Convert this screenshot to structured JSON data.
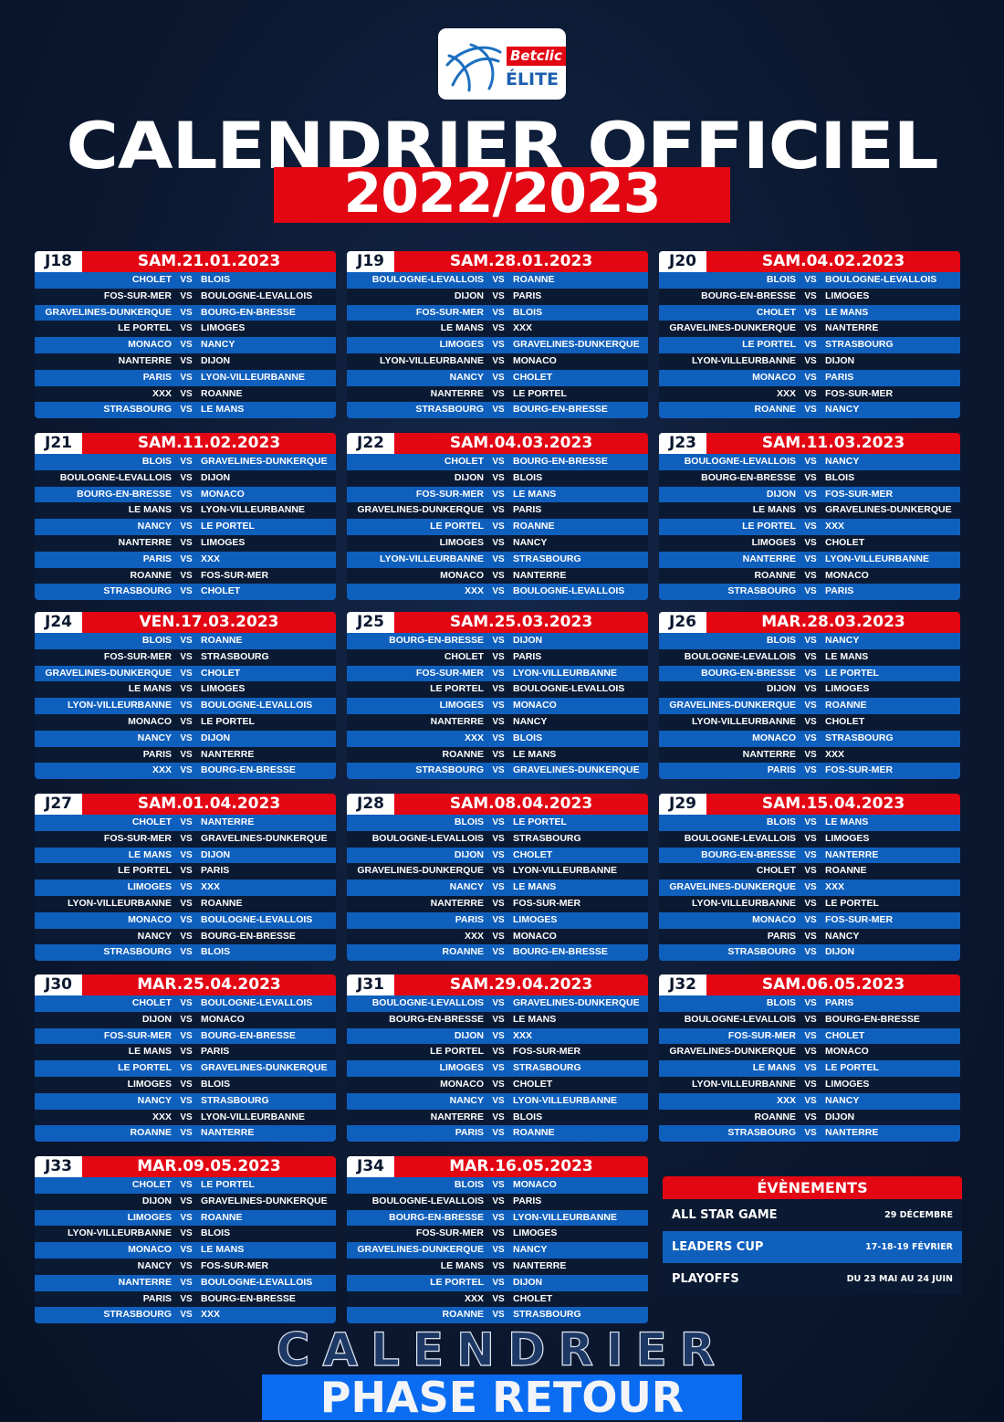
{
  "logo": {
    "brand": "Betclic",
    "league": "ÉLITE"
  },
  "title": "CALENDRIER OFFICIEL",
  "season": "2022/2023",
  "vs_label": "VS",
  "colors": {
    "red": "#e30613",
    "blue": "#0f5fbd",
    "navy": "#0b1a33",
    "phase_blue": "#0a6cf0"
  },
  "rounds": [
    {
      "day": "J18",
      "date": "SAM.21.01.2023",
      "matches": [
        [
          "CHOLET",
          "BLOIS"
        ],
        [
          "FOS-SUR-MER",
          "BOULOGNE-LEVALLOIS"
        ],
        [
          "GRAVELINES-DUNKERQUE",
          "BOURG-EN-BRESSE"
        ],
        [
          "LE PORTEL",
          "LIMOGES"
        ],
        [
          "MONACO",
          "NANCY"
        ],
        [
          "NANTERRE",
          "DIJON"
        ],
        [
          "PARIS",
          "LYON-VILLEURBANNE"
        ],
        [
          "XXX",
          "ROANNE"
        ],
        [
          "STRASBOURG",
          "LE MANS"
        ]
      ]
    },
    {
      "day": "J19",
      "date": "SAM.28.01.2023",
      "matches": [
        [
          "BOULOGNE-LEVALLOIS",
          "ROANNE"
        ],
        [
          "DIJON",
          "PARIS"
        ],
        [
          "FOS-SUR-MER",
          "BLOIS"
        ],
        [
          "LE MANS",
          "XXX"
        ],
        [
          "LIMOGES",
          "GRAVELINES-DUNKERQUE"
        ],
        [
          "LYON-VILLEURBANNE",
          "MONACO"
        ],
        [
          "NANCY",
          "CHOLET"
        ],
        [
          "NANTERRE",
          "LE PORTEL"
        ],
        [
          "STRASBOURG",
          "BOURG-EN-BRESSE"
        ]
      ]
    },
    {
      "day": "J20",
      "date": "SAM.04.02.2023",
      "matches": [
        [
          "BLOIS",
          "BOULOGNE-LEVALLOIS"
        ],
        [
          "BOURG-EN-BRESSE",
          "LIMOGES"
        ],
        [
          "CHOLET",
          "LE MANS"
        ],
        [
          "GRAVELINES-DUNKERQUE",
          "NANTERRE"
        ],
        [
          "LE PORTEL",
          "STRASBOURG"
        ],
        [
          "LYON-VILLEURBANNE",
          "DIJON"
        ],
        [
          "MONACO",
          "PARIS"
        ],
        [
          "XXX",
          "FOS-SUR-MER"
        ],
        [
          "ROANNE",
          "NANCY"
        ]
      ]
    },
    {
      "day": "J21",
      "date": "SAM.11.02.2023",
      "matches": [
        [
          "BLOIS",
          "GRAVELINES-DUNKERQUE"
        ],
        [
          "BOULOGNE-LEVALLOIS",
          "DIJON"
        ],
        [
          "BOURG-EN-BRESSE",
          "MONACO"
        ],
        [
          "LE MANS",
          "LYON-VILLEURBANNE"
        ],
        [
          "NANCY",
          "LE PORTEL"
        ],
        [
          "NANTERRE",
          "LIMOGES"
        ],
        [
          "PARIS",
          "XXX"
        ],
        [
          "ROANNE",
          "FOS-SUR-MER"
        ],
        [
          "STRASBOURG",
          "CHOLET"
        ]
      ]
    },
    {
      "day": "J22",
      "date": "SAM.04.03.2023",
      "matches": [
        [
          "CHOLET",
          "BOURG-EN-BRESSE"
        ],
        [
          "DIJON",
          "BLOIS"
        ],
        [
          "FOS-SUR-MER",
          "LE MANS"
        ],
        [
          "GRAVELINES-DUNKERQUE",
          "PARIS"
        ],
        [
          "LE PORTEL",
          "ROANNE"
        ],
        [
          "LIMOGES",
          "NANCY"
        ],
        [
          "LYON-VILLEURBANNE",
          "STRASBOURG"
        ],
        [
          "MONACO",
          "NANTERRE"
        ],
        [
          "XXX",
          "BOULOGNE-LEVALLOIS"
        ]
      ]
    },
    {
      "day": "J23",
      "date": "SAM.11.03.2023",
      "matches": [
        [
          "BOULOGNE-LEVALLOIS",
          "NANCY"
        ],
        [
          "BOURG-EN-BRESSE",
          "BLOIS"
        ],
        [
          "DIJON",
          "FOS-SUR-MER"
        ],
        [
          "LE MANS",
          "GRAVELINES-DUNKERQUE"
        ],
        [
          "LE PORTEL",
          "XXX"
        ],
        [
          "LIMOGES",
          "CHOLET"
        ],
        [
          "NANTERRE",
          "LYON-VILLEURBANNE"
        ],
        [
          "ROANNE",
          "MONACO"
        ],
        [
          "STRASBOURG",
          "PARIS"
        ]
      ]
    },
    {
      "day": "J24",
      "date": "VEN.17.03.2023",
      "matches": [
        [
          "BLOIS",
          "ROANNE"
        ],
        [
          "FOS-SUR-MER",
          "STRASBOURG"
        ],
        [
          "GRAVELINES-DUNKERQUE",
          "CHOLET"
        ],
        [
          "LE MANS",
          "LIMOGES"
        ],
        [
          "LYON-VILLEURBANNE",
          "BOULOGNE-LEVALLOIS"
        ],
        [
          "MONACO",
          "LE PORTEL"
        ],
        [
          "NANCY",
          "DIJON"
        ],
        [
          "PARIS",
          "NANTERRE"
        ],
        [
          "XXX",
          "BOURG-EN-BRESSE"
        ]
      ]
    },
    {
      "day": "J25",
      "date": "SAM.25.03.2023",
      "matches": [
        [
          "BOURG-EN-BRESSE",
          "DIJON"
        ],
        [
          "CHOLET",
          "PARIS"
        ],
        [
          "FOS-SUR-MER",
          "LYON-VILLEURBANNE"
        ],
        [
          "LE PORTEL",
          "BOULOGNE-LEVALLOIS"
        ],
        [
          "LIMOGES",
          "MONACO"
        ],
        [
          "NANTERRE",
          "NANCY"
        ],
        [
          "XXX",
          "BLOIS"
        ],
        [
          "ROANNE",
          "LE MANS"
        ],
        [
          "STRASBOURG",
          "GRAVELINES-DUNKERQUE"
        ]
      ]
    },
    {
      "day": "J26",
      "date": "MAR.28.03.2023",
      "matches": [
        [
          "BLOIS",
          "NANCY"
        ],
        [
          "BOULOGNE-LEVALLOIS",
          "LE MANS"
        ],
        [
          "BOURG-EN-BRESSE",
          "LE PORTEL"
        ],
        [
          "DIJON",
          "LIMOGES"
        ],
        [
          "GRAVELINES-DUNKERQUE",
          "ROANNE"
        ],
        [
          "LYON-VILLEURBANNE",
          "CHOLET"
        ],
        [
          "MONACO",
          "STRASBOURG"
        ],
        [
          "NANTERRE",
          "XXX"
        ],
        [
          "PARIS",
          "FOS-SUR-MER"
        ]
      ]
    },
    {
      "day": "J27",
      "date": "SAM.01.04.2023",
      "matches": [
        [
          "CHOLET",
          "NANTERRE"
        ],
        [
          "FOS-SUR-MER",
          "GRAVELINES-DUNKERQUE"
        ],
        [
          "LE MANS",
          "DIJON"
        ],
        [
          "LE PORTEL",
          "PARIS"
        ],
        [
          "LIMOGES",
          "XXX"
        ],
        [
          "LYON-VILLEURBANNE",
          "ROANNE"
        ],
        [
          "MONACO",
          "BOULOGNE-LEVALLOIS"
        ],
        [
          "NANCY",
          "BOURG-EN-BRESSE"
        ],
        [
          "STRASBOURG",
          "BLOIS"
        ]
      ]
    },
    {
      "day": "J28",
      "date": "SAM.08.04.2023",
      "matches": [
        [
          "BLOIS",
          "LE PORTEL"
        ],
        [
          "BOULOGNE-LEVALLOIS",
          "STRASBOURG"
        ],
        [
          "DIJON",
          "CHOLET"
        ],
        [
          "GRAVELINES-DUNKERQUE",
          "LYON-VILLEURBANNE"
        ],
        [
          "NANCY",
          "LE MANS"
        ],
        [
          "NANTERRE",
          "FOS-SUR-MER"
        ],
        [
          "PARIS",
          "LIMOGES"
        ],
        [
          "XXX",
          "MONACO"
        ],
        [
          "ROANNE",
          "BOURG-EN-BRESSE"
        ]
      ]
    },
    {
      "day": "J29",
      "date": "SAM.15.04.2023",
      "matches": [
        [
          "BLOIS",
          "LE MANS"
        ],
        [
          "BOULOGNE-LEVALLOIS",
          "LIMOGES"
        ],
        [
          "BOURG-EN-BRESSE",
          "NANTERRE"
        ],
        [
          "CHOLET",
          "ROANNE"
        ],
        [
          "GRAVELINES-DUNKERQUE",
          "XXX"
        ],
        [
          "LYON-VILLEURBANNE",
          "LE PORTEL"
        ],
        [
          "MONACO",
          "FOS-SUR-MER"
        ],
        [
          "PARIS",
          "NANCY"
        ],
        [
          "STRASBOURG",
          "DIJON"
        ]
      ]
    },
    {
      "day": "J30",
      "date": "MAR.25.04.2023",
      "matches": [
        [
          "CHOLET",
          "BOULOGNE-LEVALLOIS"
        ],
        [
          "DIJON",
          "MONACO"
        ],
        [
          "FOS-SUR-MER",
          "BOURG-EN-BRESSE"
        ],
        [
          "LE MANS",
          "PARIS"
        ],
        [
          "LE PORTEL",
          "GRAVELINES-DUNKERQUE"
        ],
        [
          "LIMOGES",
          "BLOIS"
        ],
        [
          "NANCY",
          "STRASBOURG"
        ],
        [
          "XXX",
          "LYON-VILLEURBANNE"
        ],
        [
          "ROANNE",
          "NANTERRE"
        ]
      ]
    },
    {
      "day": "J31",
      "date": "SAM.29.04.2023",
      "matches": [
        [
          "BOULOGNE-LEVALLOIS",
          "GRAVELINES-DUNKERQUE"
        ],
        [
          "BOURG-EN-BRESSE",
          "LE MANS"
        ],
        [
          "DIJON",
          "XXX"
        ],
        [
          "LE PORTEL",
          "FOS-SUR-MER"
        ],
        [
          "LIMOGES",
          "STRASBOURG"
        ],
        [
          "MONACO",
          "CHOLET"
        ],
        [
          "NANCY",
          "LYON-VILLEURBANNE"
        ],
        [
          "NANTERRE",
          "BLOIS"
        ],
        [
          "PARIS",
          "ROANNE"
        ]
      ]
    },
    {
      "day": "J32",
      "date": "SAM.06.05.2023",
      "matches": [
        [
          "BLOIS",
          "PARIS"
        ],
        [
          "BOULOGNE-LEVALLOIS",
          "BOURG-EN-BRESSE"
        ],
        [
          "FOS-SUR-MER",
          "CHOLET"
        ],
        [
          "GRAVELINES-DUNKERQUE",
          "MONACO"
        ],
        [
          "LE MANS",
          "LE PORTEL"
        ],
        [
          "LYON-VILLEURBANNE",
          "LIMOGES"
        ],
        [
          "XXX",
          "NANCY"
        ],
        [
          "ROANNE",
          "DIJON"
        ],
        [
          "STRASBOURG",
          "NANTERRE"
        ]
      ]
    },
    {
      "day": "J33",
      "date": "MAR.09.05.2023",
      "matches": [
        [
          "CHOLET",
          "LE PORTEL"
        ],
        [
          "DIJON",
          "GRAVELINES-DUNKERQUE"
        ],
        [
          "LIMOGES",
          "ROANNE"
        ],
        [
          "LYON-VILLEURBANNE",
          "BLOIS"
        ],
        [
          "MONACO",
          "LE MANS"
        ],
        [
          "NANCY",
          "FOS-SUR-MER"
        ],
        [
          "NANTERRE",
          "BOULOGNE-LEVALLOIS"
        ],
        [
          "PARIS",
          "BOURG-EN-BRESSE"
        ],
        [
          "STRASBOURG",
          "XXX"
        ]
      ]
    },
    {
      "day": "J34",
      "date": "MAR.16.05.2023",
      "matches": [
        [
          "BLOIS",
          "MONACO"
        ],
        [
          "BOULOGNE-LEVALLOIS",
          "PARIS"
        ],
        [
          "BOURG-EN-BRESSE",
          "LYON-VILLEURBANNE"
        ],
        [
          "FOS-SUR-MER",
          "LIMOGES"
        ],
        [
          "GRAVELINES-DUNKERQUE",
          "NANCY"
        ],
        [
          "LE MANS",
          "NANTERRE"
        ],
        [
          "LE PORTEL",
          "DIJON"
        ],
        [
          "XXX",
          "CHOLET"
        ],
        [
          "ROANNE",
          "STRASBOURG"
        ]
      ]
    }
  ],
  "events": {
    "title": "ÉVÈNEMENTS",
    "items": [
      {
        "name": "ALL STAR GAME",
        "date": "29 DÉCEMBRE"
      },
      {
        "name": "LEADERS CUP",
        "date": "17-18-19 FÉVRIER"
      },
      {
        "name": "PLAYOFFS",
        "date": "DU 23 MAI AU 24 JUIN"
      }
    ]
  },
  "phase": "PHASE RETOUR",
  "watermark": "CALENDRIER"
}
